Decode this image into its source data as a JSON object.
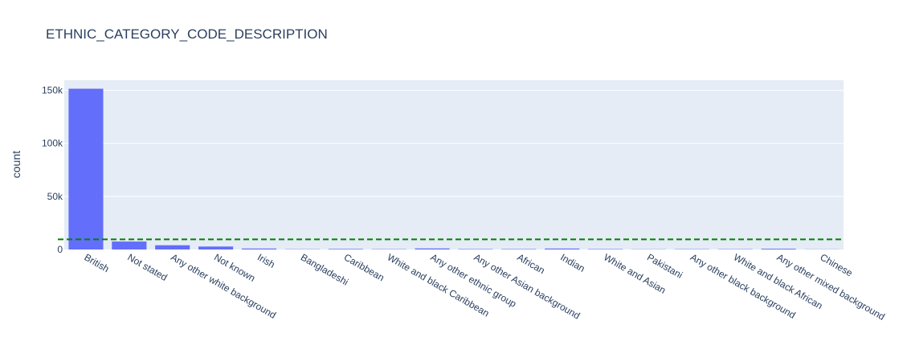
{
  "chart_data": {
    "type": "bar",
    "title": "ETHNIC_CATEGORY_CODE_DESCRIPTION",
    "xlabel": "",
    "ylabel": "count",
    "categories": [
      "British",
      "Not stated",
      "Any other white background",
      "Not known",
      "Irish",
      "Bangladeshi",
      "Caribbean",
      "White and black Caribbean",
      "Any other ethnic group",
      "Any other Asian background",
      "African",
      "Indian",
      "White and Asian",
      "Pakistani",
      "Any other black background",
      "White and black African",
      "Any other mixed background",
      "Chinese"
    ],
    "values": [
      151500,
      7500,
      4000,
      2800,
      900,
      250,
      500,
      300,
      1000,
      400,
      400,
      900,
      400,
      200,
      300,
      300,
      700,
      150
    ],
    "ylim": [
      0,
      159500
    ],
    "yticks": [
      0,
      50000,
      100000,
      150000
    ],
    "ytick_labels": [
      "0",
      "50k",
      "100k",
      "150k"
    ],
    "reference_line": {
      "value": 9500,
      "color": "#008000",
      "style": "dashed"
    },
    "colors": {
      "bar": "#636efa",
      "plot_bg": "#e5ecf6",
      "grid": "#ffffff",
      "text": "#2a3f5f"
    },
    "grid": true,
    "legend": "none"
  }
}
